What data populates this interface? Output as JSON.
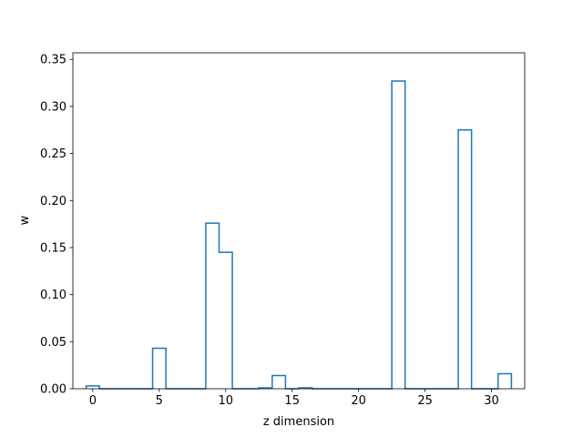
{
  "chart_data": {
    "type": "bar",
    "style": "step",
    "xlabel": "z dimension",
    "ylabel": "w",
    "xlim": [
      -1.5,
      32.5
    ],
    "ylim": [
      0,
      0.357
    ],
    "xticks": [
      0,
      5,
      10,
      15,
      20,
      25,
      30
    ],
    "yticks": [
      0.0,
      0.05,
      0.1,
      0.15,
      0.2,
      0.25,
      0.3,
      0.35
    ],
    "ytick_labels": [
      "0.00",
      "0.05",
      "0.10",
      "0.15",
      "0.20",
      "0.25",
      "0.30",
      "0.35"
    ],
    "grid": false,
    "line_color": "#1f77b4",
    "x": [
      0,
      1,
      2,
      3,
      4,
      5,
      6,
      7,
      8,
      9,
      10,
      11,
      12,
      13,
      14,
      15,
      16,
      17,
      18,
      19,
      20,
      21,
      22,
      23,
      24,
      25,
      26,
      27,
      28,
      29,
      30,
      31
    ],
    "values": [
      0.003,
      0,
      0,
      0,
      0,
      0.043,
      0,
      0,
      0,
      0.176,
      0.145,
      0,
      0,
      0.001,
      0.014,
      0,
      0.001,
      0,
      0,
      0,
      0,
      0,
      0,
      0.327,
      0,
      0,
      0,
      0,
      0.275,
      0,
      0,
      0.016
    ]
  }
}
